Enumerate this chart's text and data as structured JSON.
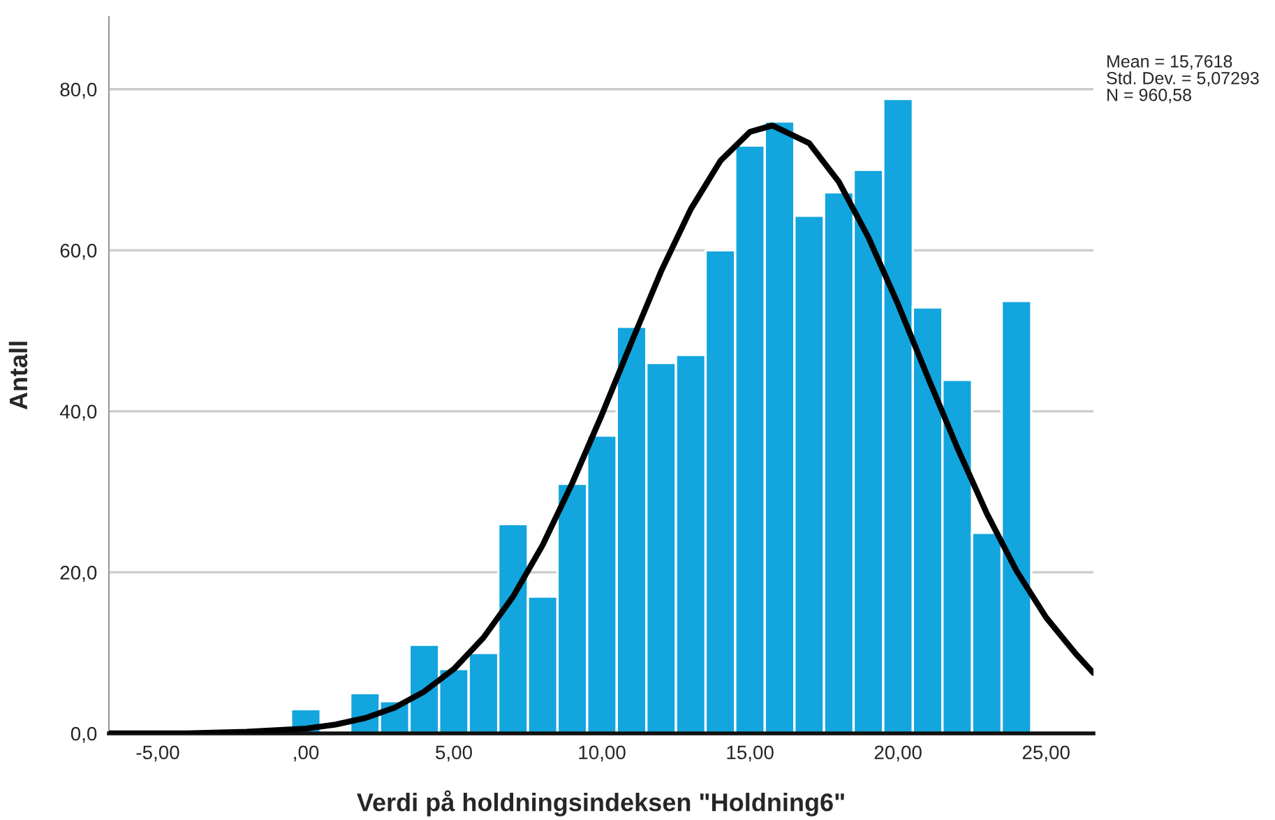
{
  "chart_data": {
    "type": "histogram",
    "xlabel": "Verdi på holdningsindeksen \"Holdning6\"",
    "ylabel": "Antall",
    "bins": [
      -0.5,
      0.5,
      1.5,
      2.5,
      3.5,
      4.5,
      5.5,
      6.5,
      7.5,
      8.5,
      9.5,
      10.5,
      11.5,
      12.5,
      13.5,
      14.5,
      15.5,
      16.5,
      17.5,
      18.5,
      19.5,
      20.5,
      21.5,
      22.5,
      23.5,
      24.5
    ],
    "values": [
      3,
      0,
      5,
      4,
      11,
      8,
      10,
      26,
      17,
      31,
      37,
      50.5,
      46,
      47,
      60,
      73,
      76,
      64.3,
      67.2,
      70,
      78.8,
      52.9,
      43.9,
      24.9,
      53.7
    ],
    "color": "#13a5de",
    "series": [
      {
        "type": "line",
        "color": "#000000",
        "x": [
          -6.65,
          -6,
          -4,
          -2,
          0,
          1,
          2,
          3,
          4,
          5,
          6,
          7,
          8,
          9,
          10,
          11,
          12,
          13,
          14,
          15,
          15.76,
          17,
          18,
          19,
          20,
          21,
          22,
          23,
          24,
          25,
          26,
          26.6
        ],
        "values": [
          0,
          0,
          0,
          0.2,
          0.6,
          1.1,
          1.9,
          3.2,
          5.2,
          8,
          11.9,
          17,
          23.4,
          31.1,
          39.6,
          48.6,
          57.4,
          65.1,
          71.1,
          74.7,
          75.5,
          73.3,
          68.5,
          61.6,
          53.3,
          44.3,
          35.5,
          27.3,
          20.2,
          14.4,
          9.9,
          7.5
        ]
      }
    ],
    "xlim": [
      -6.65,
      26.6
    ],
    "ylim": [
      0,
      89
    ],
    "xticks": [
      {
        "value": -5,
        "label": "-5,00"
      },
      {
        "value": 0,
        "label": ",00"
      },
      {
        "value": 5,
        "label": "5,00"
      },
      {
        "value": 10,
        "label": "10,00"
      },
      {
        "value": 15,
        "label": "15,00"
      },
      {
        "value": 20,
        "label": "20,00"
      },
      {
        "value": 25,
        "label": "25,00"
      }
    ],
    "yticks": [
      {
        "value": 0,
        "label": "0,0"
      },
      {
        "value": 20,
        "label": "20,0"
      },
      {
        "value": 40,
        "label": "40,0"
      },
      {
        "value": 60,
        "label": "60,0"
      },
      {
        "value": 80,
        "label": "80,0"
      }
    ],
    "grid": "y",
    "annotations": [
      "Mean = 15,7618",
      "Std. Dev. = 5,07293",
      "N = 960,58"
    ]
  }
}
